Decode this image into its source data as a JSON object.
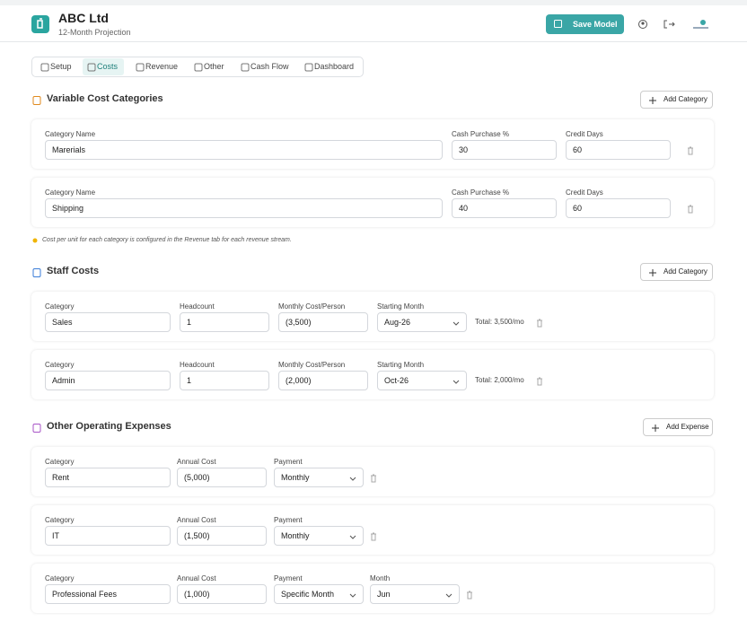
{
  "header": {
    "title": "ABC Ltd",
    "subtitle": "12-Month Projection",
    "save_button": "Save Model"
  },
  "tabs": [
    "Setup",
    "Costs",
    "Revenue",
    "Other",
    "Cash Flow",
    "Dashboard"
  ],
  "active_tab": 1,
  "variable_costs": {
    "title": "Variable Cost Categories",
    "add_button": "Add Category",
    "rows": [
      {
        "fields": [
          {
            "label": "Category Name",
            "value": "Marerials"
          },
          {
            "label": "Cash Purchase %",
            "value": "30"
          },
          {
            "label": "Credit Days",
            "value": "60"
          }
        ]
      },
      {
        "fields": [
          {
            "label": "Category Name",
            "value": "Shipping"
          },
          {
            "label": "Cash Purchase %",
            "value": "40"
          },
          {
            "label": "Credit Days",
            "value": "60"
          }
        ]
      }
    ],
    "note": "Cost per unit for each category is configured in the Revenue tab for each revenue stream."
  },
  "staff_costs": {
    "title": "Staff Costs",
    "add_button": "Add Category",
    "rows": [
      {
        "fields": [
          {
            "label": "Category",
            "value": "Sales"
          },
          {
            "label": "Headcount",
            "value": "1"
          },
          {
            "label": "Monthly Cost/Person",
            "value": "(3,500)"
          },
          {
            "label": "Starting Month",
            "value": "Aug-26",
            "input": "select"
          }
        ],
        "total": "Total: 3,500/mo"
      },
      {
        "fields": [
          {
            "label": "Category",
            "value": "Admin"
          },
          {
            "label": "Headcount",
            "value": "1"
          },
          {
            "label": "Monthly Cost/Person",
            "value": "(2,000)"
          },
          {
            "label": "Starting Month",
            "value": "Oct-26",
            "input": "select"
          }
        ],
        "total": "Total: 2,000/mo"
      }
    ]
  },
  "other_expenses": {
    "title": "Other Operating Expenses",
    "add_button": "Add Expense",
    "rows": [
      {
        "fields": [
          {
            "label": "Category",
            "value": "Rent"
          },
          {
            "label": "Annual Cost",
            "value": "(5,000)"
          },
          {
            "label": "Payment",
            "value": "Monthly",
            "input": "select"
          }
        ]
      },
      {
        "fields": [
          {
            "label": "Category",
            "value": "IT"
          },
          {
            "label": "Annual Cost",
            "value": "(1,500)"
          },
          {
            "label": "Payment",
            "value": "Monthly",
            "input": "select"
          }
        ]
      },
      {
        "fields": [
          {
            "label": "Category",
            "value": "Professional Fees"
          },
          {
            "label": "Annual Cost",
            "value": "(1,000)"
          },
          {
            "label": "Payment",
            "value": "Specific Month",
            "input": "select"
          },
          {
            "label": "Month",
            "value": "Jun",
            "input": "select"
          }
        ]
      }
    ]
  }
}
